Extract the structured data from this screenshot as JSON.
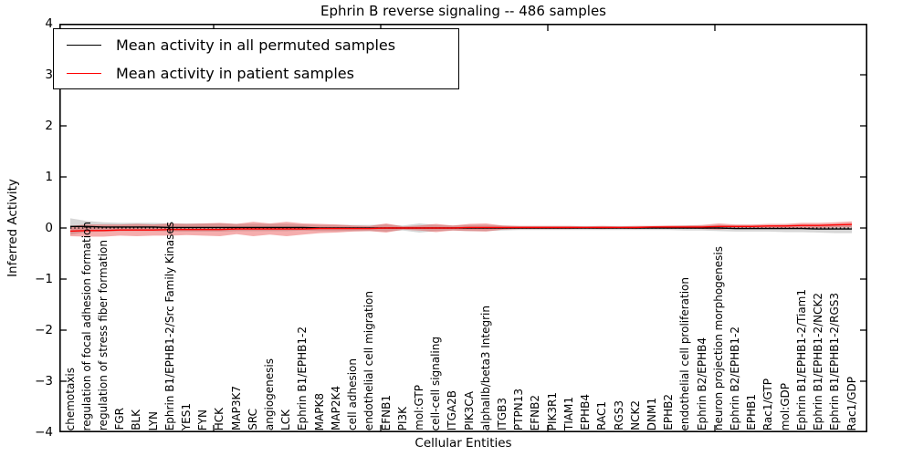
{
  "chart_data": {
    "type": "line",
    "title": "Ephrin B reverse signaling -- 486 samples",
    "xlabel": "Cellular Entities",
    "ylabel": "Inferred Activity",
    "ylim": [
      -4,
      4
    ],
    "yticks": [
      4,
      3,
      2,
      1,
      0,
      -1,
      -2,
      -3,
      -4
    ],
    "grid": false,
    "legend_position": "upper left",
    "zero_reference_line": {
      "y": 0,
      "style": "dotted",
      "color": "#000000"
    },
    "categories": [
      "chemotaxis",
      "regulation of focal adhesion formation",
      "regulation of stress fiber formation",
      "FGR",
      "BLK",
      "LYN",
      "Ephrin B1/EPHB1-2/Src Family Kinases",
      "YES1",
      "FYN",
      "HCK",
      "MAP3K7",
      "SRC",
      "angiogenesis",
      "LCK",
      "Ephrin B1/EPHB1-2",
      "MAPK8",
      "MAP2K4",
      "cell adhesion",
      "endothelial cell migration",
      "EFNB1",
      "PI3K",
      "mol:GTP",
      "cell-cell signaling",
      "ITGA2B",
      "PIK3CA",
      "alphaIIb/beta3 Integrin",
      "ITGB3",
      "PTPN13",
      "EFNB2",
      "PIK3R1",
      "TIAM1",
      "EPHB4",
      "RAC1",
      "RGS3",
      "NCK2",
      "DNM1",
      "EPHB2",
      "endothelial cell proliferation",
      "Ephrin B2/EPHB4",
      "neuron projection morphogenesis",
      "Ephrin B2/EPHB1-2",
      "EPHB1",
      "Rac1/GTP",
      "mol:GDP",
      "Ephrin B1/EPHB1-2/Tiam1",
      "Ephrin B1/EPHB1-2/NCK2",
      "Ephrin B1/EPHB1-2/RGS3",
      "Rac1/GDP"
    ],
    "series": [
      {
        "name": "Mean activity in all permuted samples",
        "color": "#000000",
        "band_color": "rgba(130,130,130,0.33)",
        "values": [
          0.03,
          0.03,
          0.02,
          0.02,
          0.02,
          0.02,
          0.01,
          0.01,
          0.01,
          0.01,
          0.01,
          0.01,
          0.01,
          0.01,
          0.01,
          0,
          0,
          0,
          0,
          0,
          0,
          0,
          0,
          0,
          0,
          0,
          0,
          0,
          0,
          0,
          0,
          0,
          0,
          0,
          0,
          0,
          0,
          0,
          0,
          0,
          -0.01,
          -0.01,
          -0.01,
          -0.01,
          -0.01,
          -0.02,
          -0.02,
          -0.02
        ],
        "std": [
          0.16,
          0.11,
          0.09,
          0.08,
          0.08,
          0.08,
          0.08,
          0.08,
          0.08,
          0.08,
          0.07,
          0.07,
          0.07,
          0.07,
          0.06,
          0.06,
          0.06,
          0.06,
          0.06,
          0.07,
          0.05,
          0.09,
          0.06,
          0.05,
          0.06,
          0.06,
          0.05,
          0.04,
          0.04,
          0.04,
          0.04,
          0.04,
          0.04,
          0.04,
          0.04,
          0.04,
          0.04,
          0.05,
          0.05,
          0.06,
          0.06,
          0.06,
          0.06,
          0.07,
          0.07,
          0.07,
          0.08,
          0.08
        ]
      },
      {
        "name": "Mean activity in patient samples",
        "color": "#ff0000",
        "band_color": "rgba(228,40,40,0.38)",
        "values": [
          -0.06,
          -0.05,
          -0.05,
          -0.04,
          -0.04,
          -0.04,
          -0.03,
          -0.03,
          -0.03,
          -0.03,
          -0.02,
          -0.02,
          -0.02,
          -0.02,
          -0.02,
          -0.01,
          -0.01,
          -0.01,
          -0.01,
          0,
          0,
          0,
          0,
          0,
          0.01,
          0.01,
          0.01,
          0.01,
          0.01,
          0.01,
          0.01,
          0.01,
          0.01,
          0.01,
          0.01,
          0.02,
          0.02,
          0.02,
          0.02,
          0.03,
          0.03,
          0.03,
          0.04,
          0.04,
          0.05,
          0.05,
          0.06,
          0.07
        ],
        "std": [
          0.1,
          0.12,
          0.12,
          0.11,
          0.12,
          0.11,
          0.12,
          0.11,
          0.12,
          0.13,
          0.1,
          0.14,
          0.11,
          0.14,
          0.11,
          0.09,
          0.08,
          0.06,
          0.05,
          0.09,
          0.03,
          0.05,
          0.08,
          0.05,
          0.07,
          0.08,
          0.04,
          0.03,
          0.03,
          0.03,
          0.03,
          0.02,
          0.03,
          0.02,
          0.03,
          0.02,
          0.03,
          0.03,
          0.04,
          0.06,
          0.04,
          0.04,
          0.04,
          0.04,
          0.05,
          0.05,
          0.05,
          0.06
        ]
      }
    ]
  }
}
